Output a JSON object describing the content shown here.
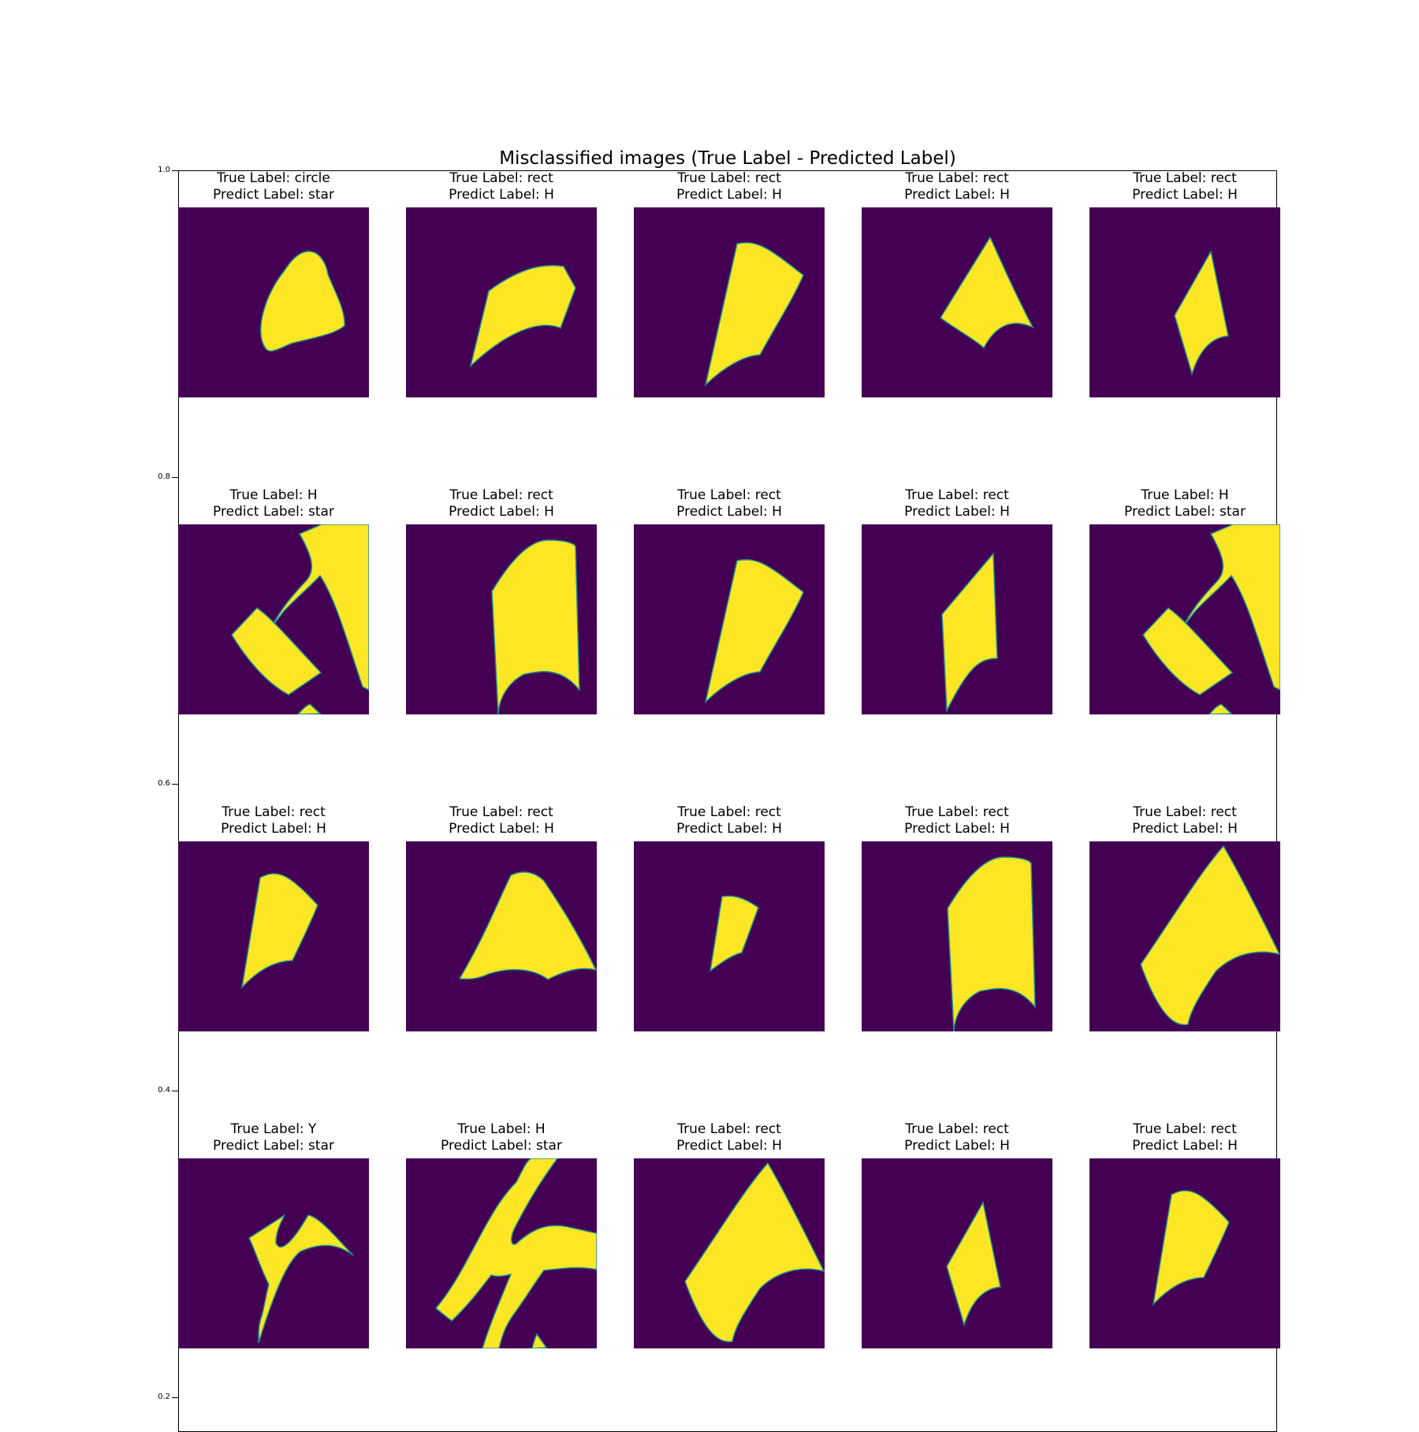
{
  "chart_data": {
    "type": "image-grid",
    "title": "Misclassified images (True Label - Predicted Label)",
    "y_ticks": [
      "1.0",
      "0.8",
      "0.6",
      "0.4",
      "0.2"
    ],
    "colors": {
      "background": "#440154",
      "foreground": "#fde725",
      "edge": "#21918c"
    },
    "panels": [
      {
        "true_label": "True Label: circle",
        "predict_label": "Predict Label: star",
        "icon": "rounded-blob-shape"
      },
      {
        "true_label": "True Label: rect",
        "predict_label": "Predict Label: H",
        "icon": "curved-quad-shape"
      },
      {
        "true_label": "True Label: rect",
        "predict_label": "Predict Label: H",
        "icon": "tall-curved-strip-shape"
      },
      {
        "true_label": "True Label: rect",
        "predict_label": "Predict Label: H",
        "icon": "arrowhead-shape"
      },
      {
        "true_label": "True Label: rect",
        "predict_label": "Predict Label: H",
        "icon": "small-quad-shape"
      },
      {
        "true_label": "True Label: H",
        "predict_label": "Predict Label: star",
        "icon": "broken-h-shape"
      },
      {
        "true_label": "True Label: rect",
        "predict_label": "Predict Label: H",
        "icon": "tall-rect-shape"
      },
      {
        "true_label": "True Label: rect",
        "predict_label": "Predict Label: H",
        "icon": "tall-curved-strip-shape"
      },
      {
        "true_label": "True Label: rect",
        "predict_label": "Predict Label: H",
        "icon": "narrow-quad-shape"
      },
      {
        "true_label": "True Label: H",
        "predict_label": "Predict Label: star",
        "icon": "broken-h-shape"
      },
      {
        "true_label": "True Label: rect",
        "predict_label": "Predict Label: H",
        "icon": "curved-strip-shape"
      },
      {
        "true_label": "True Label: rect",
        "predict_label": "Predict Label: H",
        "icon": "dome-shape"
      },
      {
        "true_label": "True Label: rect",
        "predict_label": "Predict Label: H",
        "icon": "small-strip-shape"
      },
      {
        "true_label": "True Label: rect",
        "predict_label": "Predict Label: H",
        "icon": "tall-rect-shape"
      },
      {
        "true_label": "True Label: rect",
        "predict_label": "Predict Label: H",
        "icon": "large-arc-shape"
      },
      {
        "true_label": "True Label: Y",
        "predict_label": "Predict Label: star",
        "icon": "y-shape"
      },
      {
        "true_label": "True Label: H",
        "predict_label": "Predict Label: star",
        "icon": "slanted-h-shape"
      },
      {
        "true_label": "True Label: rect",
        "predict_label": "Predict Label: H",
        "icon": "large-arc-shape"
      },
      {
        "true_label": "True Label: rect",
        "predict_label": "Predict Label: H",
        "icon": "small-quad-shape"
      },
      {
        "true_label": "True Label: rect",
        "predict_label": "Predict Label: H",
        "icon": "curved-strip-shape"
      }
    ]
  }
}
